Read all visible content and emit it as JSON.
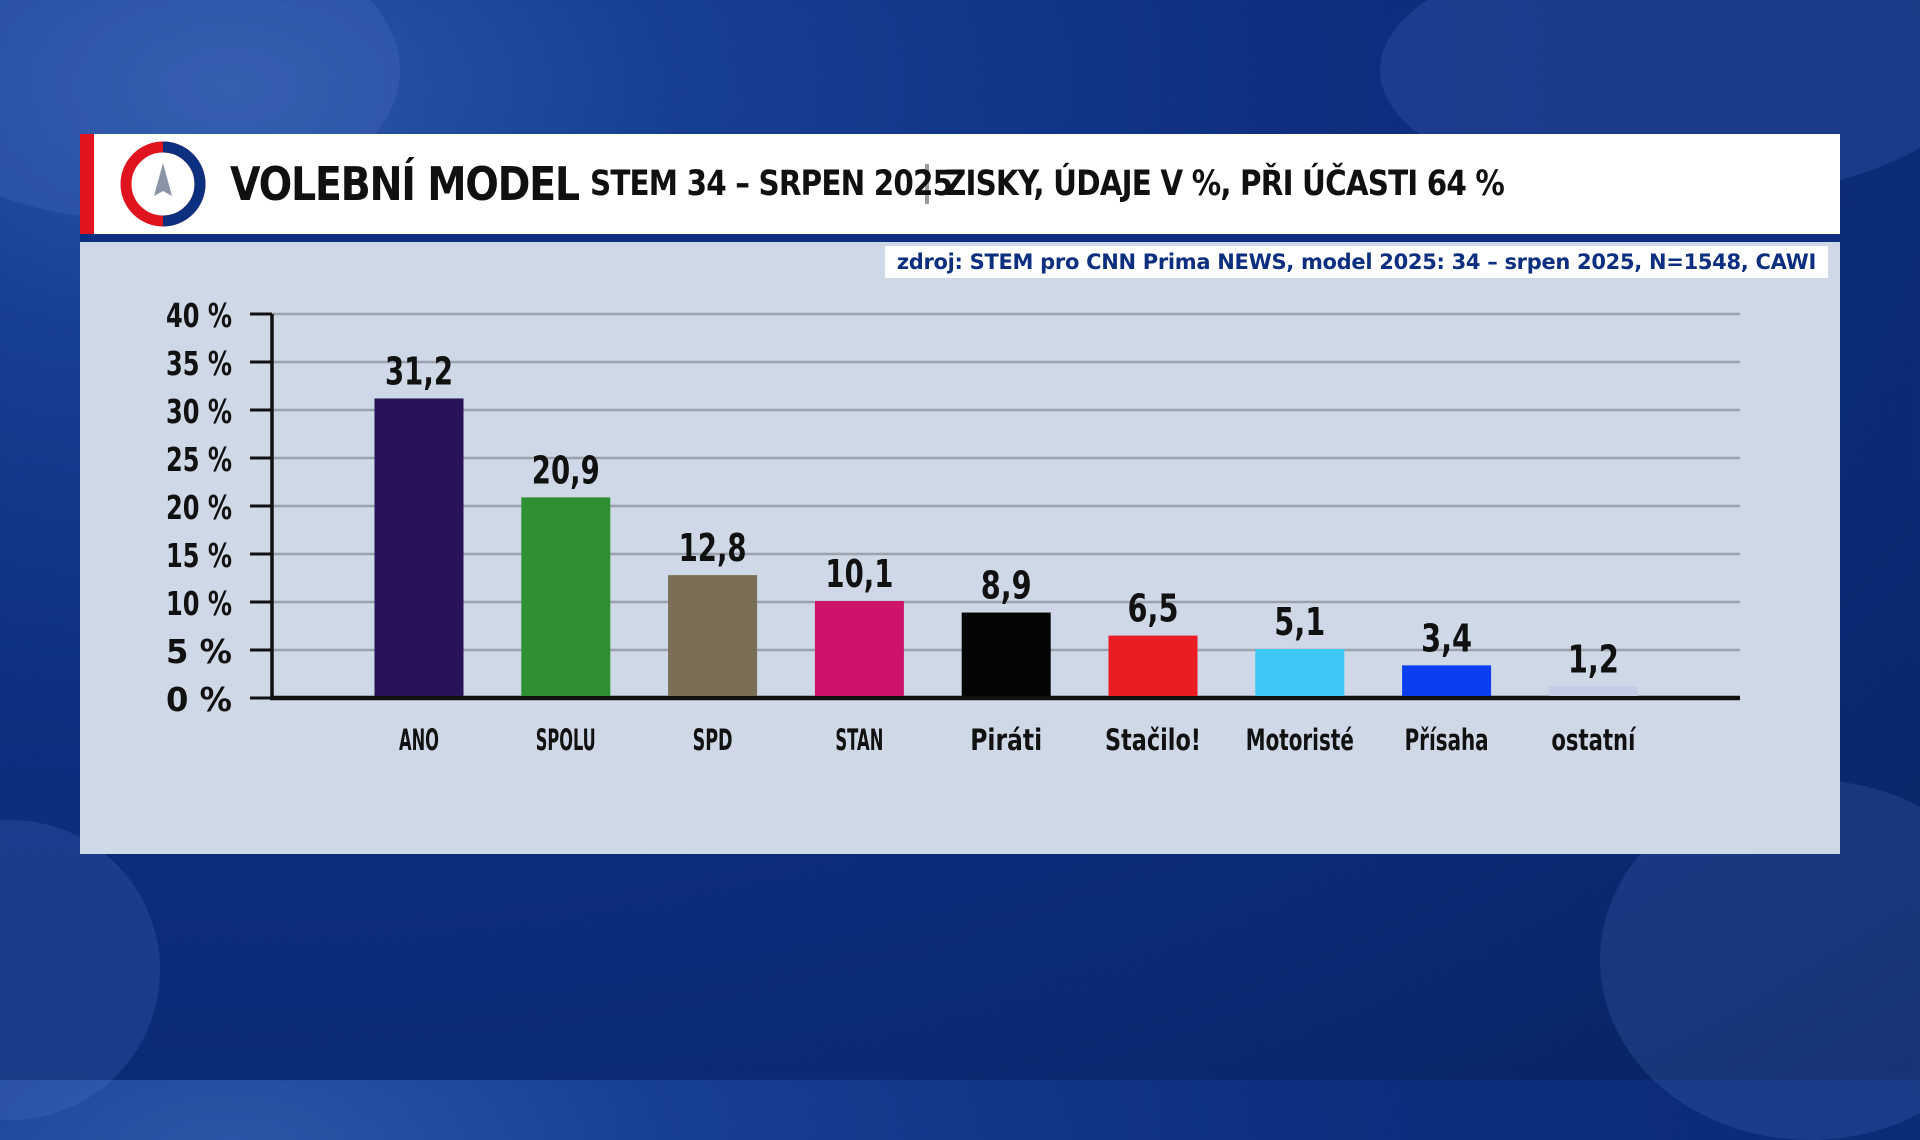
{
  "header": {
    "title": "VOLEBNÍ MODEL",
    "subtitle": "STEM 34 – SRPEN 2025",
    "subtitle2": "ZISKY, ÚDAJE V %, PŘI ÚČASTI 64 %"
  },
  "source": "zdroj: STEM pro CNN Prima NEWS, model 2025: 34 – srpen 2025, N=1548, CAWI",
  "colors": {
    "accent_red": "#e0141e",
    "brand_blue": "#0d2f7f"
  },
  "icons": {
    "logo": "compass-logo-icon"
  },
  "chart_data": {
    "type": "bar",
    "title": "VOLEBNÍ MODEL",
    "ylim": [
      0,
      40
    ],
    "yticks": [
      0,
      5,
      10,
      15,
      20,
      25,
      30,
      35,
      40
    ],
    "ytick_labels": [
      "0 %",
      "5 %",
      "10 %",
      "15 %",
      "20 %",
      "25 %",
      "30 %",
      "35 %",
      "40 %"
    ],
    "grid": true,
    "categories": [
      "ANO",
      "SPOLU",
      "SPD",
      "STAN",
      "Piráti",
      "Stačilo!",
      "Motoristé",
      "Přísaha",
      "ostatní"
    ],
    "values": [
      31.2,
      20.9,
      12.8,
      10.1,
      8.9,
      6.5,
      5.1,
      3.4,
      1.2
    ],
    "value_labels": [
      "31,2",
      "20,9",
      "12,8",
      "10,1",
      "8,9",
      "6,5",
      "5,1",
      "3,4",
      "1,2"
    ],
    "colors": [
      "#2a1258",
      "#2e8f34",
      "#7b6e56",
      "#d0136a",
      "#050505",
      "#ec1c24",
      "#3ec8f5",
      "#0a3ef0",
      "#c4cbe6"
    ]
  }
}
